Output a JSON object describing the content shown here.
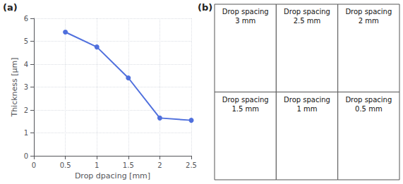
{
  "chart_data": {
    "type": "line",
    "x": [
      0.5,
      1.0,
      1.5,
      2.0,
      2.5
    ],
    "values": [
      5.4,
      4.75,
      3.4,
      1.65,
      1.55
    ],
    "xlabel": "Drop dpacing [mm]",
    "ylabel": "Thickness [μm]",
    "xlim": [
      0,
      2.5
    ],
    "ylim": [
      0,
      6
    ],
    "xticks": [
      0,
      0.5,
      1.0,
      1.5,
      2.0,
      2.5
    ],
    "yticks": [
      0,
      1,
      2,
      3,
      4,
      5,
      6
    ],
    "marker": "circle",
    "grid": true,
    "annotations": [
      "(a)",
      "(b)",
      "Drop spacing\n3 mm",
      "Drop spacing\n2.5 mm",
      "Drop spacing\n2 mm",
      "Drop spacing\n1.5 mm",
      "Drop spacing\n1 mm",
      "Drop spacing\n0.5 mm"
    ]
  }
}
